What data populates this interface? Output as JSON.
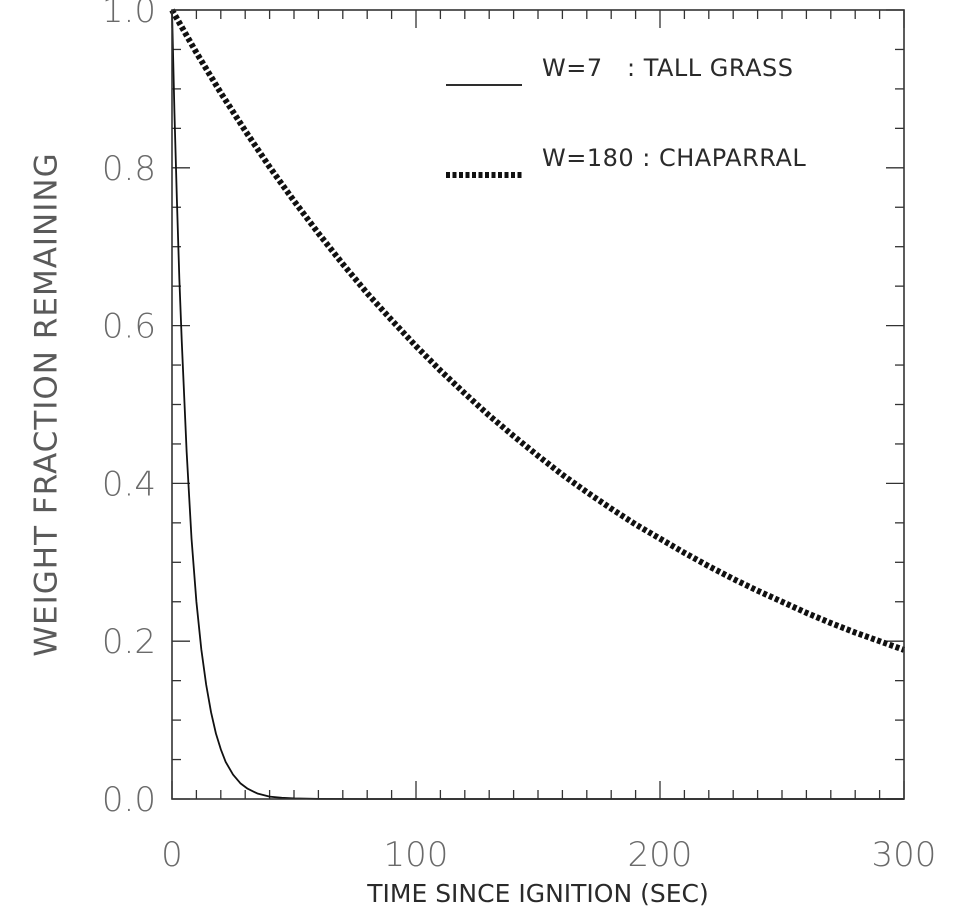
{
  "chart_data": {
    "type": "line",
    "xlabel": "TIME SINCE IGNITION (SEC)",
    "ylabel": "WEIGHT FRACTION REMAINING",
    "xlim": [
      0,
      300
    ],
    "ylim": [
      0,
      1
    ],
    "x_ticks": [
      "0",
      "100",
      "200",
      "300"
    ],
    "y_ticks": [
      "0.0",
      "0.2",
      "0.4",
      "0.6",
      "0.8",
      "1.0"
    ],
    "grid": false,
    "legend_position": "top-right",
    "series": [
      {
        "name": "W=7   : TALL GRASS",
        "style": "solid",
        "color": "#111111",
        "x": [
          0,
          1,
          2,
          3,
          4,
          6,
          8,
          10,
          12,
          14,
          16,
          18,
          20,
          22,
          25,
          28,
          31,
          35,
          40,
          45,
          50,
          60,
          80,
          100,
          150,
          200,
          250,
          300
        ],
        "y": [
          1.0,
          0.87,
          0.76,
          0.66,
          0.58,
          0.44,
          0.33,
          0.25,
          0.19,
          0.145,
          0.11,
          0.083,
          0.063,
          0.047,
          0.031,
          0.02,
          0.013,
          0.007,
          0.003,
          0.0015,
          0.0008,
          0.0002,
          0.0,
          0.0,
          0.0,
          0.0,
          0.0,
          0.0
        ]
      },
      {
        "name": "W=180 : CHAPARRAL",
        "style": "dotted",
        "color": "#111111",
        "x": [
          0,
          10,
          20,
          30,
          40,
          50,
          60,
          70,
          80,
          90,
          100,
          110,
          120,
          130,
          140,
          150,
          160,
          170,
          180,
          190,
          200,
          210,
          220,
          230,
          240,
          250,
          260,
          270,
          280,
          290,
          300
        ],
        "y": [
          1.0,
          0.946,
          0.895,
          0.847,
          0.801,
          0.758,
          0.717,
          0.678,
          0.641,
          0.607,
          0.574,
          0.543,
          0.514,
          0.486,
          0.46,
          0.435,
          0.411,
          0.389,
          0.368,
          0.348,
          0.33,
          0.312,
          0.295,
          0.279,
          0.264,
          0.25,
          0.236,
          0.223,
          0.211,
          0.2,
          0.189
        ]
      }
    ]
  }
}
